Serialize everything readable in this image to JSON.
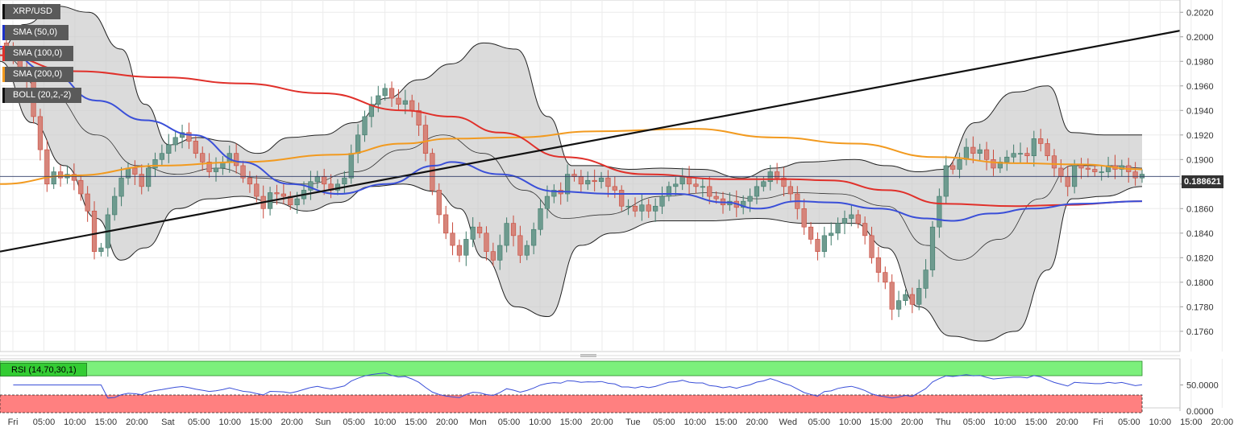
{
  "chart_data": {
    "type": "candlestick",
    "symbol": "XRP/USD",
    "last_price": "0.188621",
    "indicators": [
      {
        "label": "SMA (50,0)",
        "color": "#1c31c8"
      },
      {
        "label": "SMA (100,0)",
        "color": "#e0302a"
      },
      {
        "label": "SMA (200,0)",
        "color": "#f29a1f"
      },
      {
        "label": "BOLL (20,2,-2)",
        "color": "#111111"
      }
    ],
    "y_ticks": [
      "0.2020",
      "0.2000",
      "0.1980",
      "0.1960",
      "0.1940",
      "0.1920",
      "0.1900",
      "0.1880",
      "0.1860",
      "0.1840",
      "0.1820",
      "0.1800",
      "0.1780",
      "0.1760"
    ],
    "ylim": [
      0.174,
      0.203
    ],
    "x_ticks": [
      "Fri",
      "05:00",
      "10:00",
      "15:00",
      "20:00",
      "Sat",
      "05:00",
      "10:00",
      "15:00",
      "20:00",
      "Sun",
      "05:00",
      "10:00",
      "15:00",
      "20:00",
      "Mon",
      "05:00",
      "10:00",
      "15:00",
      "20:00",
      "Tue",
      "05:00",
      "10:00",
      "15:00",
      "20:00",
      "Wed",
      "05:00",
      "10:00",
      "15:00",
      "20:00",
      "Thu",
      "05:00",
      "10:00",
      "15:00",
      "20:00",
      "Fri",
      "05:00",
      "10:00",
      "15:00",
      "20:00"
    ],
    "close": [
      0.199,
      0.1985,
      0.1975,
      0.1965,
      0.1935,
      0.1908,
      0.188,
      0.189,
      0.1885,
      0.1888,
      0.1883,
      0.1872,
      0.1858,
      0.1825,
      0.1828,
      0.1855,
      0.187,
      0.1885,
      0.1893,
      0.1888,
      0.1878,
      0.1893,
      0.19,
      0.1905,
      0.1912,
      0.1918,
      0.1922,
      0.1915,
      0.1905,
      0.1898,
      0.189,
      0.1893,
      0.1898,
      0.1905,
      0.1895,
      0.1885,
      0.188,
      0.187,
      0.186,
      0.1873,
      0.1872,
      0.187,
      0.1863,
      0.1868,
      0.1875,
      0.1882,
      0.1886,
      0.188,
      0.1875,
      0.188,
      0.1885,
      0.1905,
      0.192,
      0.1935,
      0.1945,
      0.1952,
      0.1958,
      0.195,
      0.1945,
      0.1948,
      0.194,
      0.1928,
      0.1905,
      0.1875,
      0.1855,
      0.184,
      0.183,
      0.1822,
      0.1835,
      0.1845,
      0.184,
      0.1825,
      0.1818,
      0.183,
      0.1848,
      0.1838,
      0.1822,
      0.183,
      0.1843,
      0.186,
      0.187,
      0.1875,
      0.1872,
      0.1888,
      0.1886,
      0.188,
      0.1883,
      0.1882,
      0.1885,
      0.1878,
      0.1875,
      0.1862,
      0.1862,
      0.1858,
      0.1863,
      0.1858,
      0.1862,
      0.187,
      0.1878,
      0.188,
      0.1886,
      0.188,
      0.1878,
      0.1878,
      0.187,
      0.1868,
      0.1863,
      0.1866,
      0.1861,
      0.1866,
      0.187,
      0.1878,
      0.1882,
      0.189,
      0.1885,
      0.1878,
      0.1872,
      0.186,
      0.1845,
      0.1835,
      0.1825,
      0.1838,
      0.184,
      0.1848,
      0.1852,
      0.1855,
      0.1848,
      0.1838,
      0.182,
      0.1808,
      0.18,
      0.1778,
      0.1785,
      0.179,
      0.1782,
      0.1795,
      0.181,
      0.1845,
      0.187,
      0.1895,
      0.1892,
      0.19,
      0.191,
      0.1905,
      0.1908,
      0.19,
      0.1893,
      0.1898,
      0.1902,
      0.1905,
      0.1905,
      0.1903,
      0.1917,
      0.1913,
      0.1903,
      0.1893,
      0.1886,
      0.1878,
      0.1895,
      0.1893,
      0.1892,
      0.189,
      0.189,
      0.1895,
      0.1892,
      0.1895,
      0.189,
      0.1885,
      0.1888
    ],
    "sma50": [
      [
        0,
        0.1992
      ],
      [
        60,
        0.1972
      ],
      [
        120,
        0.1948
      ],
      [
        180,
        0.1932
      ],
      [
        240,
        0.192
      ],
      [
        300,
        0.1898
      ],
      [
        360,
        0.188
      ],
      [
        420,
        0.1872
      ],
      [
        480,
        0.188
      ],
      [
        540,
        0.1895
      ],
      [
        560,
        0.1898
      ],
      [
        620,
        0.1888
      ],
      [
        690,
        0.1874
      ],
      [
        760,
        0.1872
      ],
      [
        840,
        0.1872
      ],
      [
        900,
        0.1865
      ],
      [
        940,
        0.186
      ],
      [
        990,
        0.1866
      ],
      [
        1030,
        0.1865
      ],
      [
        1090,
        0.186
      ],
      [
        1150,
        0.1852
      ],
      [
        1180,
        0.185
      ],
      [
        1230,
        0.1856
      ],
      [
        1280,
        0.186
      ],
      [
        1340,
        0.1864
      ],
      [
        1417,
        0.1866
      ]
    ],
    "sma100": [
      [
        0,
        0.1985
      ],
      [
        90,
        0.1972
      ],
      [
        200,
        0.1967
      ],
      [
        300,
        0.1962
      ],
      [
        400,
        0.1954
      ],
      [
        500,
        0.194
      ],
      [
        560,
        0.1935
      ],
      [
        620,
        0.1922
      ],
      [
        700,
        0.1902
      ],
      [
        800,
        0.1888
      ],
      [
        900,
        0.1884
      ],
      [
        980,
        0.1884
      ],
      [
        1030,
        0.1883
      ],
      [
        1100,
        0.1875
      ],
      [
        1170,
        0.1864
      ],
      [
        1260,
        0.1862
      ],
      [
        1320,
        0.1863
      ],
      [
        1417,
        0.1866
      ]
    ],
    "sma200": [
      [
        0,
        0.188
      ],
      [
        90,
        0.1887
      ],
      [
        200,
        0.1895
      ],
      [
        300,
        0.1898
      ],
      [
        420,
        0.1904
      ],
      [
        500,
        0.1913
      ],
      [
        560,
        0.1917
      ],
      [
        640,
        0.1918
      ],
      [
        740,
        0.1923
      ],
      [
        860,
        0.1925
      ],
      [
        960,
        0.1918
      ],
      [
        1060,
        0.1913
      ],
      [
        1160,
        0.1902
      ],
      [
        1260,
        0.1897
      ],
      [
        1340,
        0.1896
      ],
      [
        1417,
        0.1892
      ]
    ],
    "boll_upper": [
      [
        0,
        0.199
      ],
      [
        30,
        0.201
      ],
      [
        70,
        0.2025
      ],
      [
        110,
        0.202
      ],
      [
        150,
        0.199
      ],
      [
        180,
        0.1945
      ],
      [
        210,
        0.1912
      ],
      [
        245,
        0.1918
      ],
      [
        280,
        0.1915
      ],
      [
        320,
        0.1905
      ],
      [
        360,
        0.1918
      ],
      [
        400,
        0.192
      ],
      [
        440,
        0.193
      ],
      [
        480,
        0.195
      ],
      [
        520,
        0.1965
      ],
      [
        560,
        0.1978
      ],
      [
        600,
        0.1995
      ],
      [
        640,
        0.199
      ],
      [
        680,
        0.1935
      ],
      [
        710,
        0.1895
      ],
      [
        740,
        0.1895
      ],
      [
        780,
        0.1892
      ],
      [
        820,
        0.1893
      ],
      [
        870,
        0.1892
      ],
      [
        920,
        0.1885
      ],
      [
        960,
        0.1893
      ],
      [
        1000,
        0.1898
      ],
      [
        1060,
        0.19
      ],
      [
        1100,
        0.1895
      ],
      [
        1140,
        0.189
      ],
      [
        1170,
        0.1892
      ],
      [
        1210,
        0.193
      ],
      [
        1260,
        0.1955
      ],
      [
        1300,
        0.196
      ],
      [
        1330,
        0.1922
      ],
      [
        1370,
        0.192
      ],
      [
        1417,
        0.192
      ]
    ],
    "boll_lower": [
      [
        0,
        0.198
      ],
      [
        40,
        0.193
      ],
      [
        80,
        0.1895
      ],
      [
        120,
        0.1852
      ],
      [
        150,
        0.1818
      ],
      [
        180,
        0.1828
      ],
      [
        220,
        0.186
      ],
      [
        260,
        0.1868
      ],
      [
        300,
        0.187
      ],
      [
        340,
        0.1865
      ],
      [
        380,
        0.1858
      ],
      [
        420,
        0.1865
      ],
      [
        460,
        0.1878
      ],
      [
        500,
        0.188
      ],
      [
        540,
        0.1874
      ],
      [
        570,
        0.186
      ],
      [
        600,
        0.182
      ],
      [
        640,
        0.178
      ],
      [
        680,
        0.1772
      ],
      [
        720,
        0.183
      ],
      [
        760,
        0.184
      ],
      [
        820,
        0.185
      ],
      [
        880,
        0.185
      ],
      [
        940,
        0.1852
      ],
      [
        1000,
        0.1848
      ],
      [
        1060,
        0.1848
      ],
      [
        1100,
        0.1828
      ],
      [
        1140,
        0.178
      ],
      [
        1180,
        0.1756
      ],
      [
        1220,
        0.1752
      ],
      [
        1260,
        0.176
      ],
      [
        1300,
        0.181
      ],
      [
        1330,
        0.1868
      ],
      [
        1370,
        0.187
      ],
      [
        1417,
        0.1878
      ]
    ],
    "boll_mid": [
      [
        0,
        0.1985
      ],
      [
        60,
        0.1955
      ],
      [
        120,
        0.192
      ],
      [
        170,
        0.1895
      ],
      [
        220,
        0.1888
      ],
      [
        270,
        0.1893
      ],
      [
        320,
        0.1885
      ],
      [
        380,
        0.188
      ],
      [
        440,
        0.189
      ],
      [
        500,
        0.1908
      ],
      [
        550,
        0.192
      ],
      [
        600,
        0.1905
      ],
      [
        650,
        0.1875
      ],
      [
        700,
        0.1852
      ],
      [
        750,
        0.1855
      ],
      [
        820,
        0.187
      ],
      [
        880,
        0.1873
      ],
      [
        940,
        0.1868
      ],
      [
        990,
        0.1873
      ],
      [
        1040,
        0.1872
      ],
      [
        1100,
        0.1862
      ],
      [
        1150,
        0.183
      ],
      [
        1190,
        0.1818
      ],
      [
        1240,
        0.1835
      ],
      [
        1290,
        0.1868
      ],
      [
        1330,
        0.1895
      ],
      [
        1380,
        0.1895
      ],
      [
        1417,
        0.1893
      ]
    ],
    "trendline": [
      [
        0,
        0.1825
      ],
      [
        1464,
        0.2005
      ]
    ],
    "rsi": {
      "label": "RSI (14,70,30,1)",
      "ticks": [
        "50.0000",
        "0.0000"
      ],
      "overbought": 70,
      "oversold": 30
    },
    "grid": true
  }
}
